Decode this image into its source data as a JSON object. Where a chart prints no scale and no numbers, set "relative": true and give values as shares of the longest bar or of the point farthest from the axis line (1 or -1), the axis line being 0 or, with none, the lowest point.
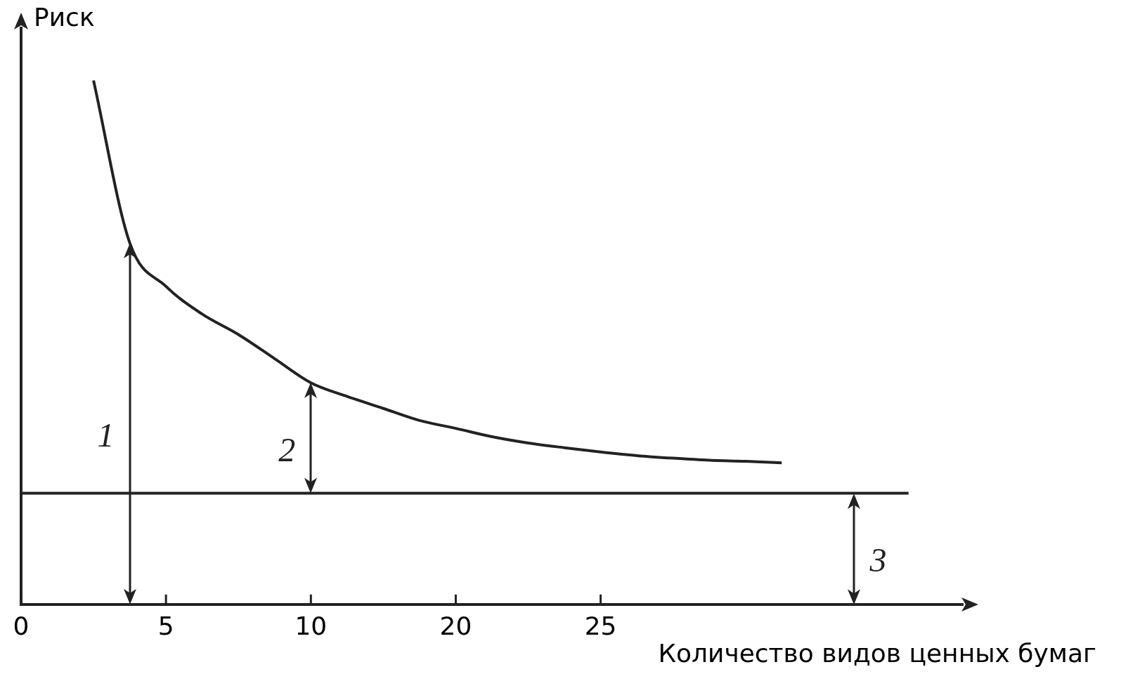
{
  "chart_data": {
    "type": "line",
    "relative": true,
    "ylabel": "Риск",
    "xlabel": "Количество видов ценных бумаг",
    "categories": [
      "0",
      null,
      null,
      null,
      "5",
      null,
      null,
      null,
      "10",
      null,
      null,
      null,
      "20",
      null,
      null,
      null,
      "25",
      null,
      null,
      null,
      null,
      null,
      null,
      null,
      null,
      null,
      null
    ],
    "series": [
      {
        "color": "#222222",
        "values": [
          null,
          null,
          1,
          0.69,
          0.607,
          0.554,
          0.515,
          0.469,
          0.423,
          0.397,
          0.374,
          0.351,
          0.336,
          0.32,
          0.308,
          0.299,
          0.291,
          0.284,
          0.279,
          0.275,
          0.273,
          0.27,
          null,
          null,
          null,
          null,
          null
        ]
      }
    ],
    "ref_lines": [
      {
        "axis": "y",
        "value": 0.212,
        "color": "#222222"
      }
    ],
    "annotations": [
      "1",
      "2",
      "3"
    ]
  }
}
